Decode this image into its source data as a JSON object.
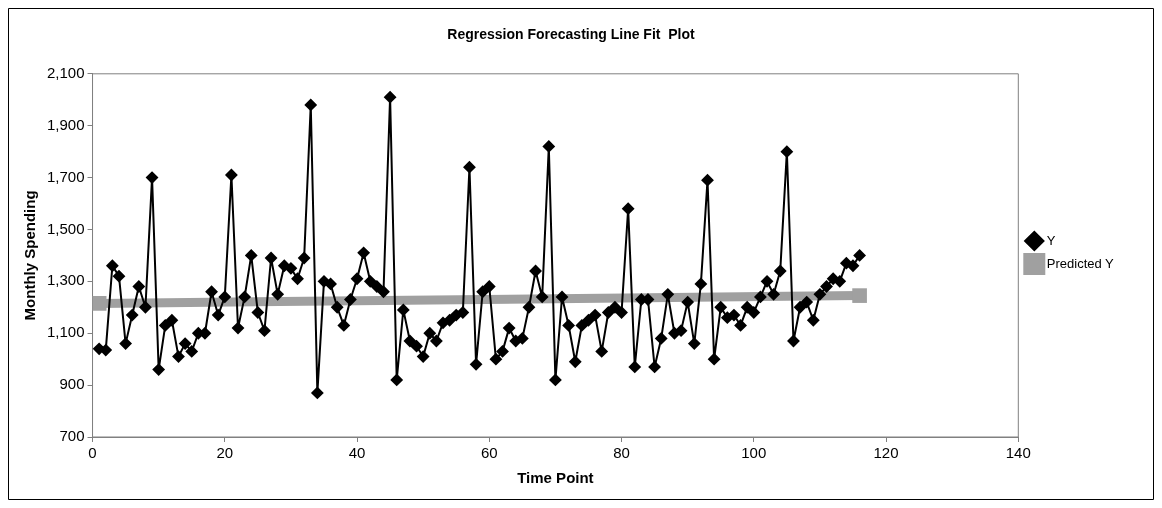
{
  "chart_data": {
    "type": "line",
    "title": "Regression Forecasting Line Fit  Plot",
    "xlabel": "Time Point",
    "ylabel": "Monthly Spending",
    "xlim": [
      0,
      140
    ],
    "xticks": [
      0,
      20,
      40,
      60,
      80,
      100,
      120,
      140
    ],
    "ylim": [
      700,
      2100
    ],
    "yticks": [
      {
        "value": 700,
        "label": "700"
      },
      {
        "value": 900,
        "label": "900"
      },
      {
        "value": 1100,
        "label": "1,100"
      },
      {
        "value": 1300,
        "label": "1,300"
      },
      {
        "value": 1500,
        "label": "1,500"
      },
      {
        "value": 1700,
        "label": "1,700"
      },
      {
        "value": 1900,
        "label": "1,900"
      },
      {
        "value": 2100,
        "label": "2,100"
      }
    ],
    "grid": false,
    "legend": "right",
    "line_style": "solid",
    "series": [
      {
        "name": "Y",
        "color": "#000000",
        "marker": "diamond",
        "x": [
          1,
          2,
          3,
          4,
          5,
          6,
          7,
          8,
          9,
          10,
          11,
          12,
          13,
          14,
          15,
          16,
          17,
          18,
          19,
          20,
          21,
          22,
          23,
          24,
          25,
          26,
          27,
          28,
          29,
          30,
          31,
          32,
          33,
          34,
          35,
          36,
          37,
          38,
          39,
          40,
          41,
          42,
          43,
          44,
          45,
          46,
          47,
          48,
          49,
          50,
          51,
          52,
          53,
          54,
          55,
          56,
          57,
          58,
          59,
          60,
          61,
          62,
          63,
          64,
          65,
          66,
          67,
          68,
          69,
          70,
          71,
          72,
          73,
          74,
          75,
          76,
          77,
          78,
          79,
          80,
          81,
          82,
          83,
          84,
          85,
          86,
          87,
          88,
          89,
          90,
          91,
          92,
          93,
          94,
          95,
          96,
          97,
          98,
          99,
          100,
          101,
          102,
          103,
          104,
          105,
          106,
          107,
          108,
          109,
          110,
          111,
          112,
          113,
          114,
          115,
          116
        ],
        "values": [
          1040,
          1035,
          1360,
          1320,
          1060,
          1170,
          1280,
          1200,
          1700,
          960,
          1130,
          1150,
          1010,
          1060,
          1030,
          1100,
          1100,
          1260,
          1170,
          1240,
          1710,
          1120,
          1240,
          1400,
          1180,
          1110,
          1390,
          1250,
          1360,
          1350,
          1310,
          1390,
          1980,
          870,
          1300,
          1290,
          1200,
          1130,
          1230,
          1310,
          1410,
          1300,
          1280,
          1260,
          2010,
          920,
          1190,
          1070,
          1050,
          1010,
          1100,
          1070,
          1140,
          1150,
          1170,
          1180,
          1740,
          980,
          1260,
          1280,
          1000,
          1030,
          1120,
          1070,
          1080,
          1200,
          1340,
          1240,
          1820,
          920,
          1240,
          1130,
          990,
          1130,
          1150,
          1170,
          1030,
          1180,
          1200,
          1180,
          1580,
          970,
          1230,
          1230,
          970,
          1080,
          1250,
          1100,
          1110,
          1220,
          1060,
          1290,
          1690,
          1000,
          1200,
          1160,
          1170,
          1130,
          1200,
          1180,
          1240,
          1300,
          1250,
          1340,
          1800,
          1070,
          1200,
          1220,
          1150,
          1250,
          1280,
          1310,
          1300,
          1370,
          1360,
          1400
        ]
      },
      {
        "name": "Predicted Y",
        "color": "#a0a0a0",
        "marker": "square",
        "x": [
          1,
          116
        ],
        "values": [
          1215,
          1245
        ]
      }
    ]
  }
}
